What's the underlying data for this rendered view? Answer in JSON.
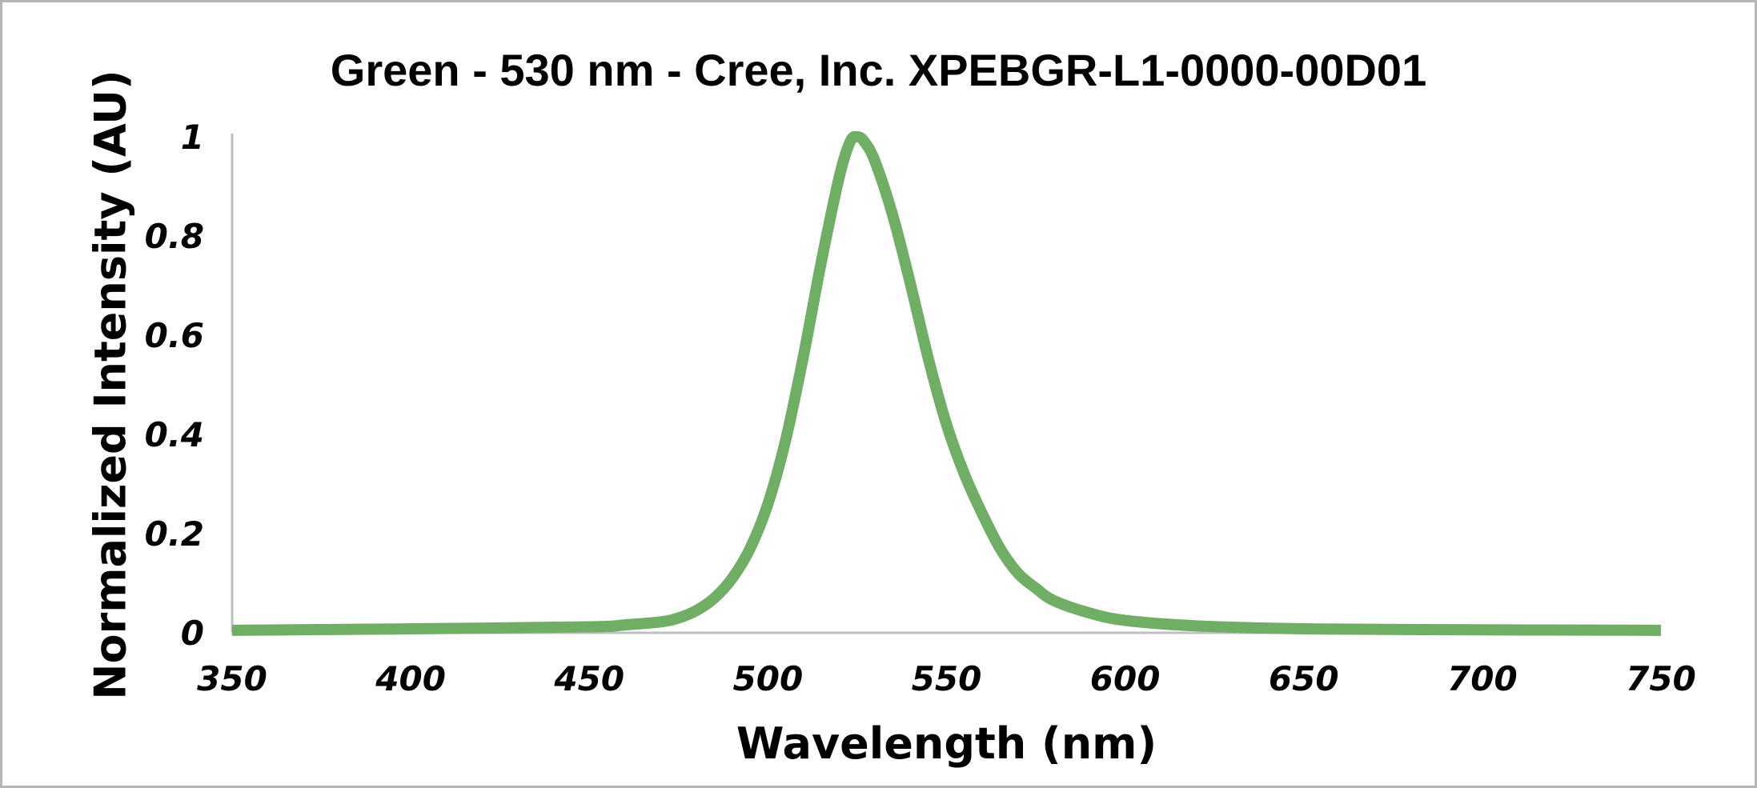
{
  "chart_data": {
    "type": "line",
    "title": "Green - 530 nm - Cree, Inc. XPEBGR-L1-0000-00D01",
    "xlabel": "Wavelength (nm)",
    "ylabel": "Normalized Intensity (AU)",
    "xlim": [
      350,
      750
    ],
    "ylim": [
      0,
      1
    ],
    "xticks": [
      "350",
      "400",
      "450",
      "500",
      "550",
      "600",
      "650",
      "700",
      "750"
    ],
    "yticks": [
      "0",
      "0.2",
      "0.4",
      "0.6",
      "0.8",
      "1"
    ],
    "grid": false,
    "legend": "none",
    "series_color": "#70AD65",
    "axis_color": "#bfbfbf",
    "series": [
      {
        "x": [
          350,
          400,
          450,
          460,
          470,
          475,
          480,
          485,
          490,
          495,
          500,
          505,
          510,
          515,
          520,
          523,
          525,
          527,
          530,
          535,
          540,
          545,
          550,
          555,
          560,
          565,
          570,
          575,
          580,
          590,
          600,
          620,
          650,
          700,
          750
        ],
        "y": [
          0.005,
          0.008,
          0.012,
          0.016,
          0.022,
          0.03,
          0.045,
          0.07,
          0.11,
          0.17,
          0.26,
          0.39,
          0.56,
          0.75,
          0.92,
          0.99,
          1.0,
          0.99,
          0.95,
          0.84,
          0.7,
          0.55,
          0.42,
          0.32,
          0.24,
          0.17,
          0.12,
          0.09,
          0.065,
          0.04,
          0.025,
          0.014,
          0.008,
          0.006,
          0.005
        ]
      }
    ]
  }
}
